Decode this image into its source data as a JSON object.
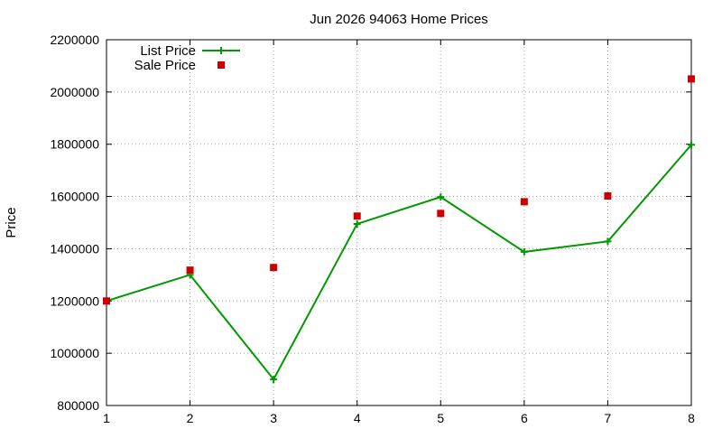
{
  "chart_data": {
    "type": "line",
    "title": "Jun 2026 94063 Home Prices",
    "xlabel": "",
    "ylabel": "Price",
    "xlim": [
      1,
      8
    ],
    "ylim": [
      800000,
      2200000
    ],
    "x_ticks": [
      "1",
      "2",
      "3",
      "4",
      "5",
      "6",
      "7",
      "8"
    ],
    "y_ticks": [
      "800000",
      "1000000",
      "1200000",
      "1400000",
      "1600000",
      "1800000",
      "2000000",
      "2200000"
    ],
    "grid": true,
    "legend_position": "top-left",
    "x": [
      1,
      2,
      3,
      4,
      5,
      6,
      7,
      8
    ],
    "series": [
      {
        "name": "List Price",
        "style": "line-points",
        "color": "#009900",
        "values": [
          1200000,
          1300000,
          900000,
          1495000,
          1598000,
          1388000,
          1428000,
          1798000
        ]
      },
      {
        "name": "Sale Price",
        "style": "points",
        "color": "#cc0000",
        "values": [
          1200000,
          1318000,
          1328000,
          1525000,
          1535000,
          1580000,
          1602000,
          2050000
        ]
      }
    ]
  }
}
